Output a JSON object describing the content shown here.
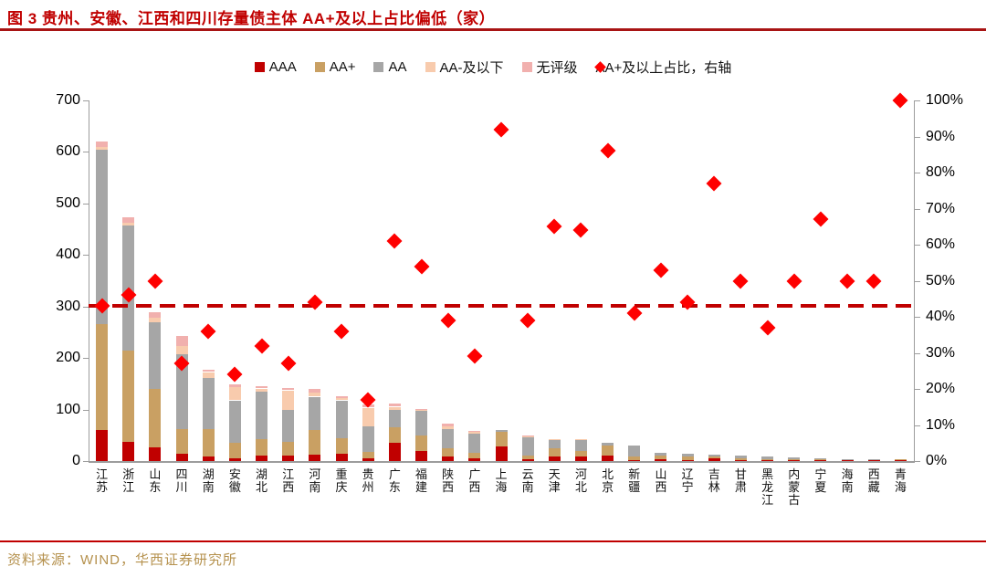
{
  "figure": {
    "title": "图 3 贵州、安徽、江西和四川存量债主体 AA+及以上占比偏低（家）",
    "source": "资料来源：WIND，华西证券研究所"
  },
  "colors": {
    "title_red": "#c00000",
    "reference_line": "#c00000",
    "scatter_red": "#fe0000",
    "source_gold": "#b5914d",
    "axis_gray": "#9d9d9d"
  },
  "chart_data": {
    "type": "bar",
    "subtype": "stacked-columns-with-right-axis-scatter",
    "title": "图 3 贵州、安徽、江西和四川存量债主体 AA+及以上占比偏低（家）",
    "xlabel": "",
    "ylabel": "",
    "grid": false,
    "legend_position": "top",
    "legend": [
      "AAA",
      "AA+",
      "AA",
      "AA-及以下",
      "无评级",
      "AA+及以上占比，右轴"
    ],
    "categories": [
      "江苏",
      "浙江",
      "山东",
      "四川",
      "湖南",
      "安徽",
      "湖北",
      "江西",
      "河南",
      "重庆",
      "贵州",
      "广东",
      "福建",
      "陕西",
      "广西",
      "上海",
      "云南",
      "天津",
      "河北",
      "北京",
      "新疆",
      "山西",
      "辽宁",
      "吉林",
      "甘肃",
      "黑龙江",
      "内蒙古",
      "宁夏",
      "海南",
      "西藏",
      "青海"
    ],
    "series": [
      {
        "name": "AAA",
        "color": "#c00000",
        "values": [
          60,
          38,
          27,
          15,
          9,
          6,
          11,
          10,
          12,
          15,
          6,
          35,
          20,
          8,
          5,
          28,
          3,
          8,
          8,
          10,
          2,
          3,
          2,
          5,
          2,
          1,
          1,
          1,
          1,
          1,
          1
        ]
      },
      {
        "name": "AA+",
        "color": "#c9a063",
        "values": [
          205,
          177,
          113,
          47,
          53,
          30,
          32,
          28,
          49,
          30,
          12,
          30,
          30,
          17,
          11,
          28,
          8,
          17,
          12,
          20,
          7,
          7,
          7,
          4,
          3,
          2,
          2,
          3,
          1,
          1,
          1
        ]
      },
      {
        "name": "AA",
        "color": "#a6a6a6",
        "values": [
          340,
          242,
          130,
          146,
          100,
          82,
          92,
          62,
          64,
          73,
          50,
          35,
          47,
          37,
          37,
          4,
          35,
          16,
          21,
          6,
          22,
          6,
          5,
          3,
          5,
          5,
          3,
          2,
          2,
          2,
          0
        ]
      },
      {
        "name": "AA-及以下",
        "color": "#f8cbad",
        "values": [
          5,
          5,
          8,
          16,
          11,
          25,
          6,
          38,
          8,
          5,
          36,
          6,
          2,
          5,
          3,
          0,
          1,
          1,
          1,
          0,
          0,
          0,
          0,
          0,
          0,
          0,
          0,
          0,
          0,
          0,
          0
        ]
      },
      {
        "name": "无评级",
        "color": "#f1b0ae",
        "values": [
          10,
          10,
          10,
          19,
          3,
          5,
          3,
          3,
          7,
          4,
          6,
          5,
          1,
          5,
          1,
          0,
          1,
          0,
          0,
          0,
          0,
          0,
          0,
          0,
          0,
          0,
          0,
          0,
          0,
          0,
          0
        ]
      }
    ],
    "scatter_series": {
      "name": "AA+及以上占比，右轴",
      "axis": "right",
      "unit": "%",
      "color": "#fe0000",
      "values": [
        43,
        46,
        50,
        27,
        36,
        24,
        32,
        27,
        44,
        36,
        17,
        61,
        54,
        39,
        29,
        92,
        39,
        65,
        64,
        86,
        41,
        53,
        44,
        77,
        50,
        37,
        50,
        67,
        50,
        50,
        100
      ]
    },
    "reference_line": {
      "axis": "right",
      "value": 43,
      "style": "dashed",
      "color": "#c00000"
    },
    "left_axis": {
      "min": 0,
      "max": 700,
      "step": 100,
      "ticks": [
        "0",
        "100",
        "200",
        "300",
        "400",
        "500",
        "600",
        "700"
      ]
    },
    "right_axis": {
      "min": 0,
      "max": 100,
      "step": 10,
      "ticks": [
        "0%",
        "10%",
        "20%",
        "30%",
        "40%",
        "50%",
        "60%",
        "70%",
        "80%",
        "90%",
        "100%"
      ]
    }
  }
}
